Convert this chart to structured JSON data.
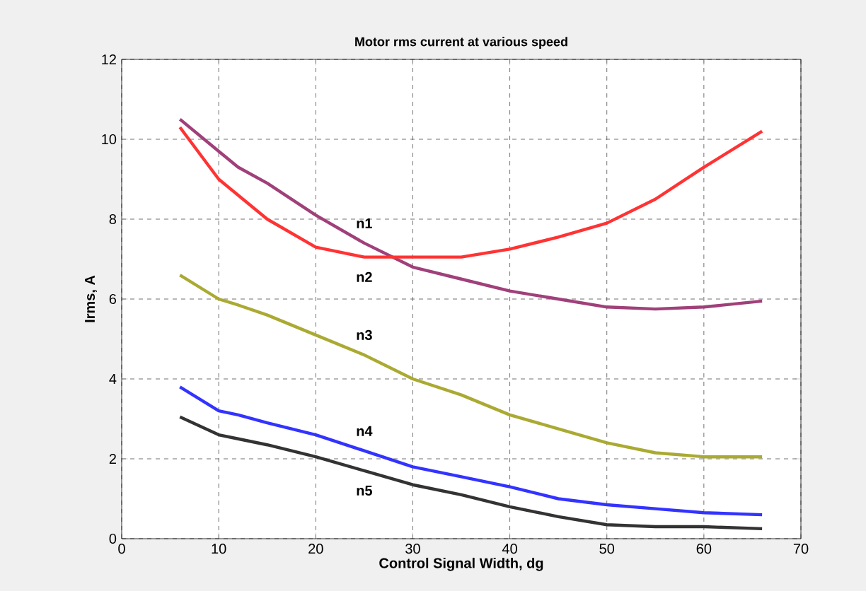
{
  "chart_data": {
    "type": "line",
    "title": "Motor rms current at various speed",
    "xlabel": "Control Signal Width, dg",
    "ylabel": "Irms, A",
    "xlim": [
      0,
      70
    ],
    "ylim": [
      0,
      12
    ],
    "xticks": [
      0,
      10,
      20,
      30,
      40,
      50,
      60,
      70
    ],
    "yticks": [
      0,
      2,
      4,
      6,
      8,
      10,
      12
    ],
    "grid": true,
    "marker": "none",
    "line_style": "solid",
    "x": [
      6,
      10,
      12,
      15,
      20,
      25,
      30,
      35,
      40,
      45,
      50,
      55,
      60,
      66
    ],
    "series": [
      {
        "name": "n1",
        "color": "#a0407a",
        "values": [
          10.5,
          9.7,
          9.3,
          8.9,
          8.1,
          7.4,
          6.8,
          6.5,
          6.2,
          6.0,
          5.8,
          5.75,
          5.8,
          5.95
        ]
      },
      {
        "name": "n2",
        "color": "#ff3333",
        "values": [
          10.3,
          9.0,
          8.6,
          8.0,
          7.3,
          7.05,
          7.05,
          7.05,
          7.25,
          7.55,
          7.9,
          8.5,
          9.3,
          10.2
        ]
      },
      {
        "name": "n3",
        "color": "#aaaa33",
        "values": [
          6.6,
          6.0,
          5.85,
          5.6,
          5.1,
          4.6,
          4.0,
          3.6,
          3.1,
          2.75,
          2.4,
          2.15,
          2.05,
          2.05
        ]
      },
      {
        "name": "n4",
        "color": "#3333ff",
        "values": [
          3.8,
          3.2,
          3.1,
          2.9,
          2.6,
          2.2,
          1.8,
          1.55,
          1.3,
          1.0,
          0.85,
          0.75,
          0.65,
          0.6
        ]
      },
      {
        "name": "n5",
        "color": "#333333",
        "values": [
          3.05,
          2.6,
          2.5,
          2.35,
          2.05,
          1.7,
          1.35,
          1.1,
          0.8,
          0.55,
          0.35,
          0.3,
          0.3,
          0.25
        ]
      }
    ]
  }
}
